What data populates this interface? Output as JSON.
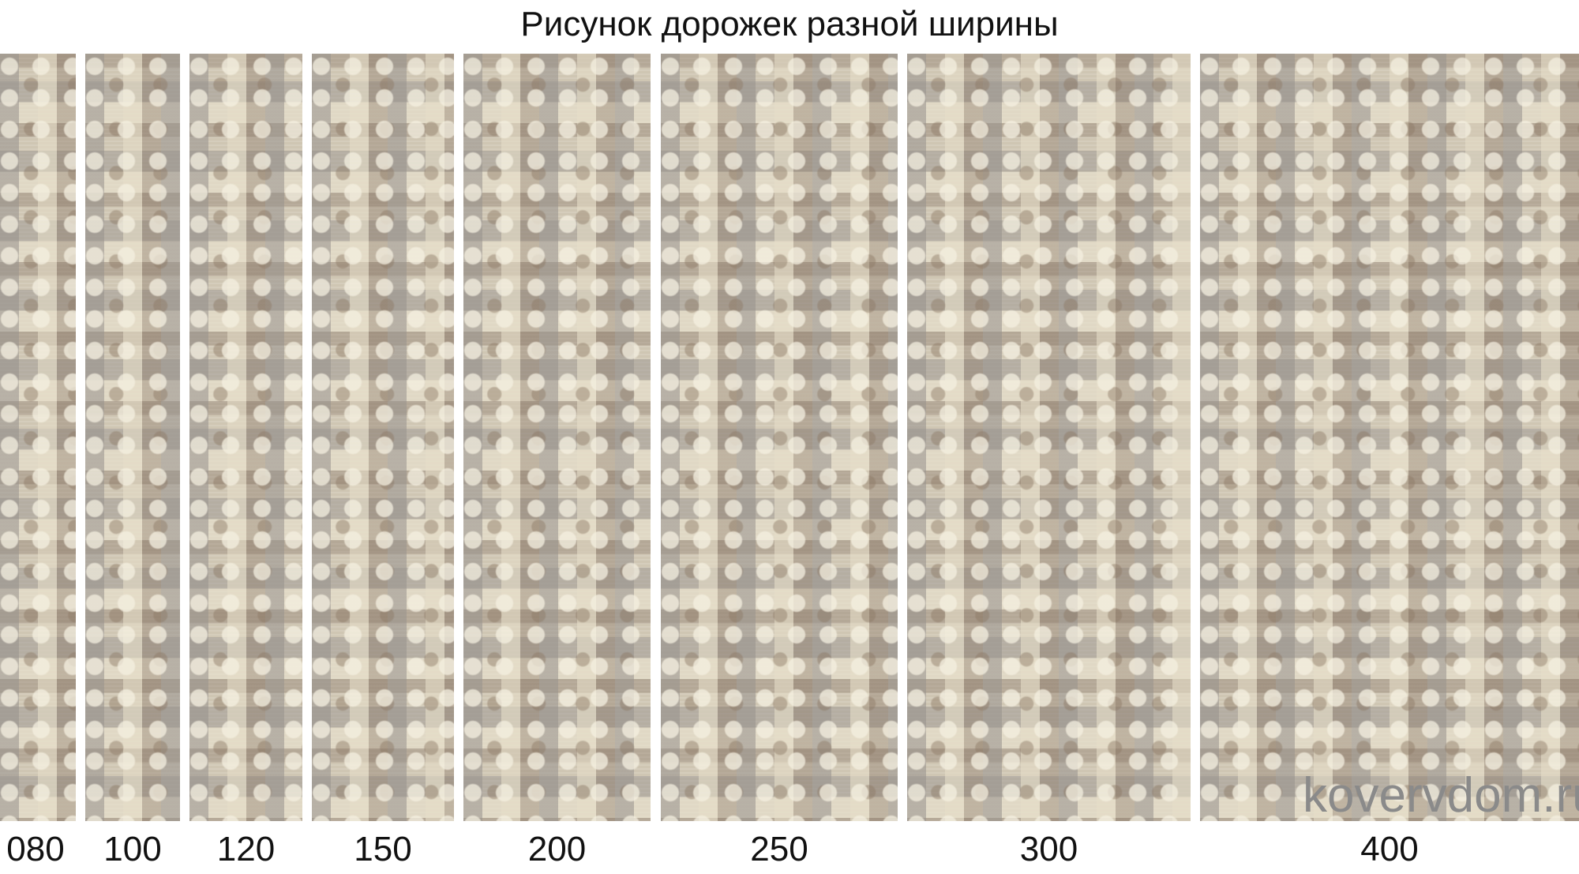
{
  "title": "Рисунок дорожек разной ширины",
  "strips": [
    {
      "label": "080"
    },
    {
      "label": "100"
    },
    {
      "label": "120"
    },
    {
      "label": "150"
    },
    {
      "label": "200"
    },
    {
      "label": "250"
    },
    {
      "label": "300"
    },
    {
      "label": "400"
    }
  ],
  "watermark": "kovervdom.ru",
  "colors": {
    "rug_base": "#cfc6b3",
    "watermark": "#8a8a8a"
  }
}
